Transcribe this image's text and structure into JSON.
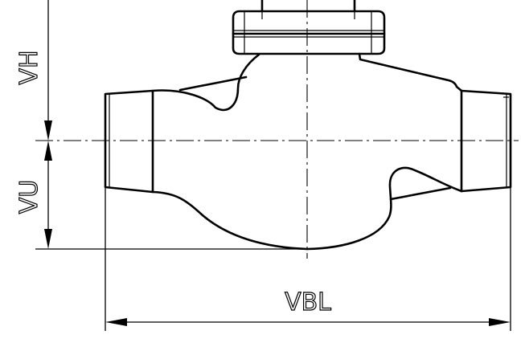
{
  "dimensions": {
    "vh": "VH",
    "vu": "VU",
    "vbl": "VBL"
  }
}
